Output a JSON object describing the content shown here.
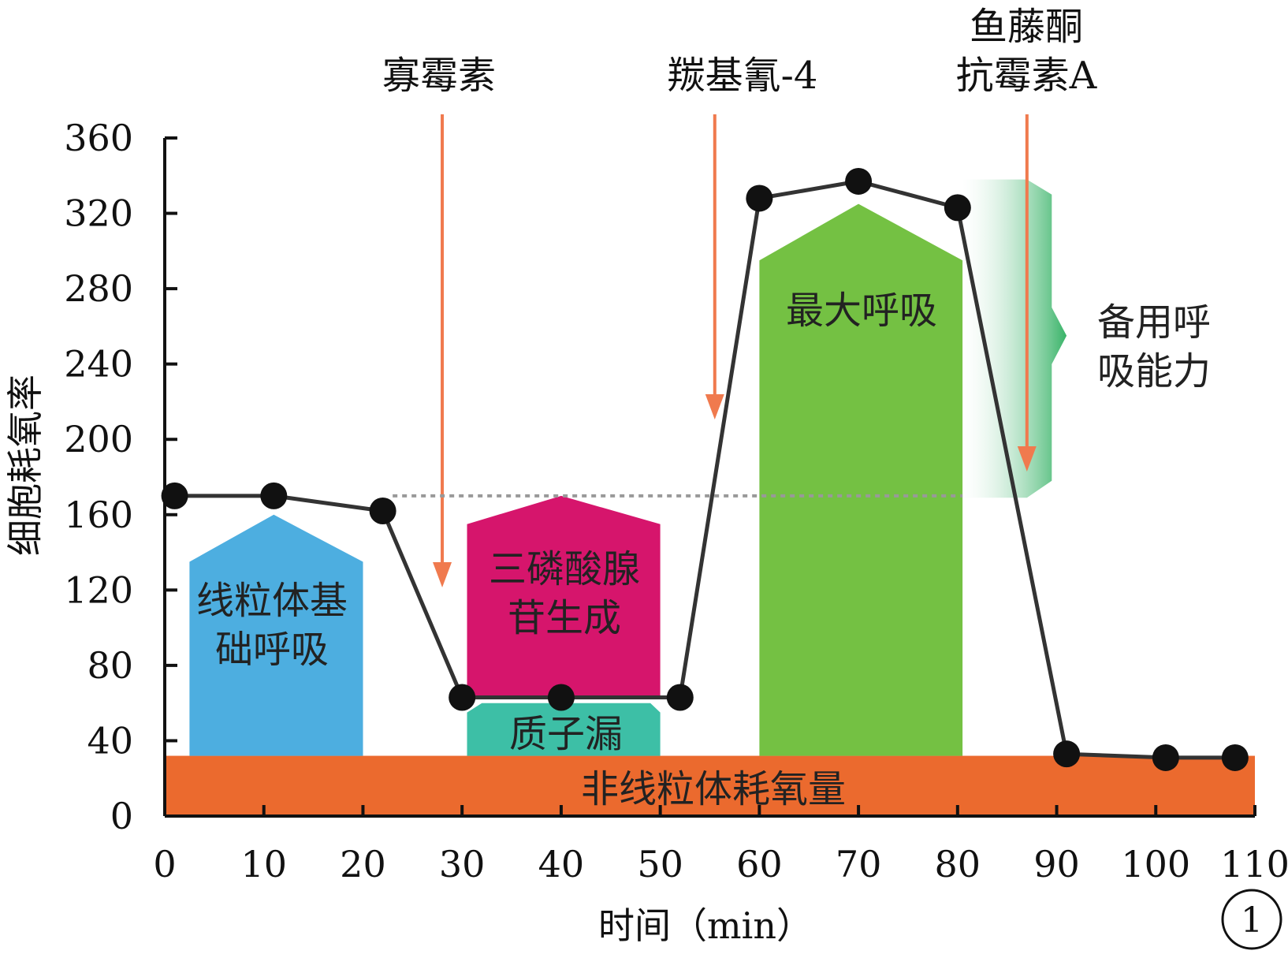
{
  "chart_data": {
    "type": "line",
    "xlabel": "时间（min）",
    "ylabel": "细胞耗氧率",
    "xlim": [
      0,
      110
    ],
    "ylim": [
      0,
      360
    ],
    "x_ticks": [
      0,
      10,
      20,
      30,
      40,
      50,
      60,
      70,
      80,
      90,
      100,
      110
    ],
    "y_ticks": [
      0,
      40,
      80,
      120,
      160,
      200,
      240,
      280,
      320,
      360
    ],
    "series": [
      {
        "x": [
          1,
          11,
          22,
          30,
          40,
          52,
          60,
          70,
          80,
          91,
          101,
          108
        ],
        "y": [
          170,
          170,
          162,
          63,
          63,
          63,
          328,
          337,
          323,
          33,
          31,
          31
        ]
      }
    ],
    "basal_reference_y": 170,
    "treatments": [
      {
        "x": 28,
        "label": "寡霉素"
      },
      {
        "x": 55.5,
        "label": "羰基氰-4"
      },
      {
        "x": 87,
        "label_lines": [
          "鱼藤酮",
          "抗霉素A"
        ]
      }
    ],
    "regions": [
      {
        "label_lines": [
          "线粒体基",
          "础呼吸"
        ],
        "color": "#4DAEE0"
      },
      {
        "label_lines": [
          "三磷酸腺",
          "苷生成"
        ],
        "color": "#D6156C"
      },
      {
        "label_lines": [
          "质子漏"
        ],
        "color": "#3DBFA6"
      },
      {
        "label_lines": [
          "最大呼吸"
        ],
        "color": "#74C143"
      },
      {
        "label_lines": [
          "备用呼",
          "吸能力"
        ],
        "color": "#2EAF60"
      },
      {
        "label_lines": [
          "非线粒体耗氧量"
        ],
        "color": "#EB6A2E"
      }
    ],
    "colors": {
      "line": "#333333",
      "arrow": "#F07A4E"
    },
    "panel_label": "1"
  }
}
